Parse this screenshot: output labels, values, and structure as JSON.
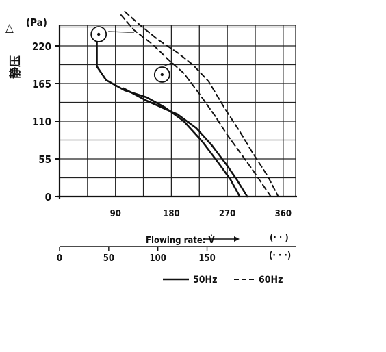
{
  "chart_data": {
    "type": "line",
    "title": "",
    "ylabel": "静压",
    "ylabel_symbol": "△",
    "yunit": "(Pa)",
    "xlabel": "Flowing rate: V̇",
    "xunit": "(· · )",
    "xunit2": "(· · ·)",
    "ylim": [
      0,
      250
    ],
    "xlim": [
      0,
      380
    ],
    "xlim2_max": 240.1,
    "grid": true,
    "yticks": [
      0,
      55,
      110,
      165,
      220
    ],
    "xticks": [
      90,
      180,
      270,
      360
    ],
    "x0_label": "",
    "xticks2": [
      "0",
      "50",
      "100",
      "150"
    ],
    "xticks2_values": [
      0,
      50,
      100,
      150
    ],
    "legend": [
      {
        "label": "50Hz",
        "style": "solid"
      },
      {
        "label": "60Hz",
        "style": "dashed"
      }
    ],
    "markers": [
      {
        "x": 63,
        "y": 237
      },
      {
        "x": 165,
        "y": 178
      }
    ],
    "series": [
      {
        "style": "solid",
        "x": [
          60,
          60,
          75,
          105,
          140,
          170,
          200,
          230,
          255,
          275,
          290
        ],
        "y": [
          233,
          190,
          170,
          155,
          145,
          130,
          110,
          80,
          50,
          25,
          0
        ]
      },
      {
        "style": "solid",
        "x": [
          103,
          140,
          165,
          190,
          220,
          245,
          270,
          285,
          302
        ],
        "y": [
          158,
          140,
          130,
          120,
          100,
          75,
          45,
          25,
          0
        ]
      },
      {
        "style": "dashed",
        "x": [
          99,
          120,
          150,
          175,
          200,
          225,
          250,
          270,
          290,
          310,
          340
        ],
        "y": [
          265,
          243,
          222,
          200,
          180,
          150,
          118,
          90,
          65,
          40,
          0
        ]
      },
      {
        "style": "dashed",
        "x": [
          105,
          130,
          160,
          190,
          215,
          240,
          265,
          290,
          310,
          335,
          352
        ],
        "y": [
          270,
          250,
          228,
          210,
          192,
          168,
          130,
          95,
          65,
          30,
          0
        ]
      }
    ]
  }
}
